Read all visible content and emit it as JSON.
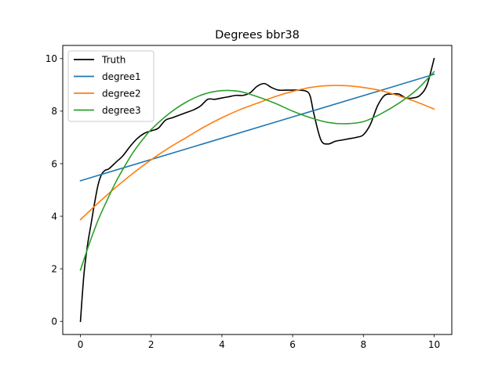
{
  "chart_data": {
    "type": "line",
    "title": "Degrees bbr38",
    "xlabel": "",
    "ylabel": "",
    "xlim": [
      -0.5,
      10.5
    ],
    "ylim": [
      -0.5,
      10.5
    ],
    "xticks": [
      0,
      2,
      4,
      6,
      8,
      10
    ],
    "yticks": [
      0,
      2,
      4,
      6,
      8,
      10
    ],
    "grid": false,
    "legend": {
      "placement": "top-left"
    },
    "series": [
      {
        "name": "Truth",
        "color": "#000000",
        "x": [
          0,
          0.1,
          0.2,
          0.3,
          0.4,
          0.5,
          0.6,
          0.7,
          0.8,
          1.0,
          1.2,
          1.4,
          1.6,
          1.8,
          2.0,
          2.2,
          2.4,
          2.6,
          2.8,
          3.0,
          3.2,
          3.4,
          3.6,
          3.8,
          4.0,
          4.2,
          4.4,
          4.6,
          4.8,
          5.0,
          5.2,
          5.4,
          5.6,
          5.8,
          6.0,
          6.2,
          6.4,
          6.5,
          6.6,
          6.8,
          7.0,
          7.2,
          7.4,
          7.6,
          7.8,
          8.0,
          8.2,
          8.4,
          8.6,
          8.8,
          9.0,
          9.2,
          9.4,
          9.6,
          9.8,
          10.0
        ],
        "y": [
          0.0,
          1.8,
          2.9,
          3.7,
          4.5,
          5.2,
          5.6,
          5.75,
          5.8,
          6.05,
          6.3,
          6.65,
          6.95,
          7.15,
          7.25,
          7.35,
          7.65,
          7.75,
          7.85,
          7.95,
          8.05,
          8.2,
          8.45,
          8.45,
          8.5,
          8.55,
          8.6,
          8.6,
          8.7,
          8.95,
          9.05,
          8.9,
          8.8,
          8.8,
          8.8,
          8.8,
          8.75,
          8.55,
          7.9,
          6.9,
          6.75,
          6.85,
          6.9,
          6.95,
          7.0,
          7.1,
          7.5,
          8.2,
          8.6,
          8.65,
          8.65,
          8.5,
          8.5,
          8.6,
          9.0,
          10.0
        ]
      },
      {
        "name": "degree1",
        "color": "#1f77b4",
        "x": [
          0,
          10
        ],
        "y": [
          5.35,
          9.4
        ]
      },
      {
        "name": "degree2",
        "color": "#ff7f0e",
        "x": [
          0,
          0.5,
          1.0,
          1.5,
          2.0,
          2.5,
          3.0,
          3.5,
          4.0,
          4.5,
          5.0,
          5.5,
          6.0,
          6.5,
          7.0,
          7.5,
          8.0,
          8.5,
          9.0,
          9.5,
          10.0
        ],
        "y": [
          3.87,
          4.5,
          5.1,
          5.65,
          6.15,
          6.6,
          7.0,
          7.4,
          7.75,
          8.05,
          8.3,
          8.55,
          8.75,
          8.9,
          8.97,
          8.97,
          8.9,
          8.78,
          8.58,
          8.35,
          8.08
        ]
      },
      {
        "name": "degree3",
        "color": "#2ca02c",
        "x": [
          0,
          0.25,
          0.5,
          0.75,
          1.0,
          1.25,
          1.5,
          1.75,
          2.0,
          2.5,
          3.0,
          3.5,
          4.0,
          4.5,
          5.0,
          5.5,
          6.0,
          6.5,
          7.0,
          7.5,
          8.0,
          8.5,
          9.0,
          9.5,
          10.0
        ],
        "y": [
          1.95,
          2.95,
          3.85,
          4.6,
          5.3,
          5.9,
          6.45,
          6.9,
          7.3,
          7.9,
          8.35,
          8.65,
          8.78,
          8.75,
          8.55,
          8.3,
          8.0,
          7.75,
          7.57,
          7.52,
          7.6,
          7.9,
          8.3,
          8.8,
          9.5
        ]
      }
    ]
  }
}
